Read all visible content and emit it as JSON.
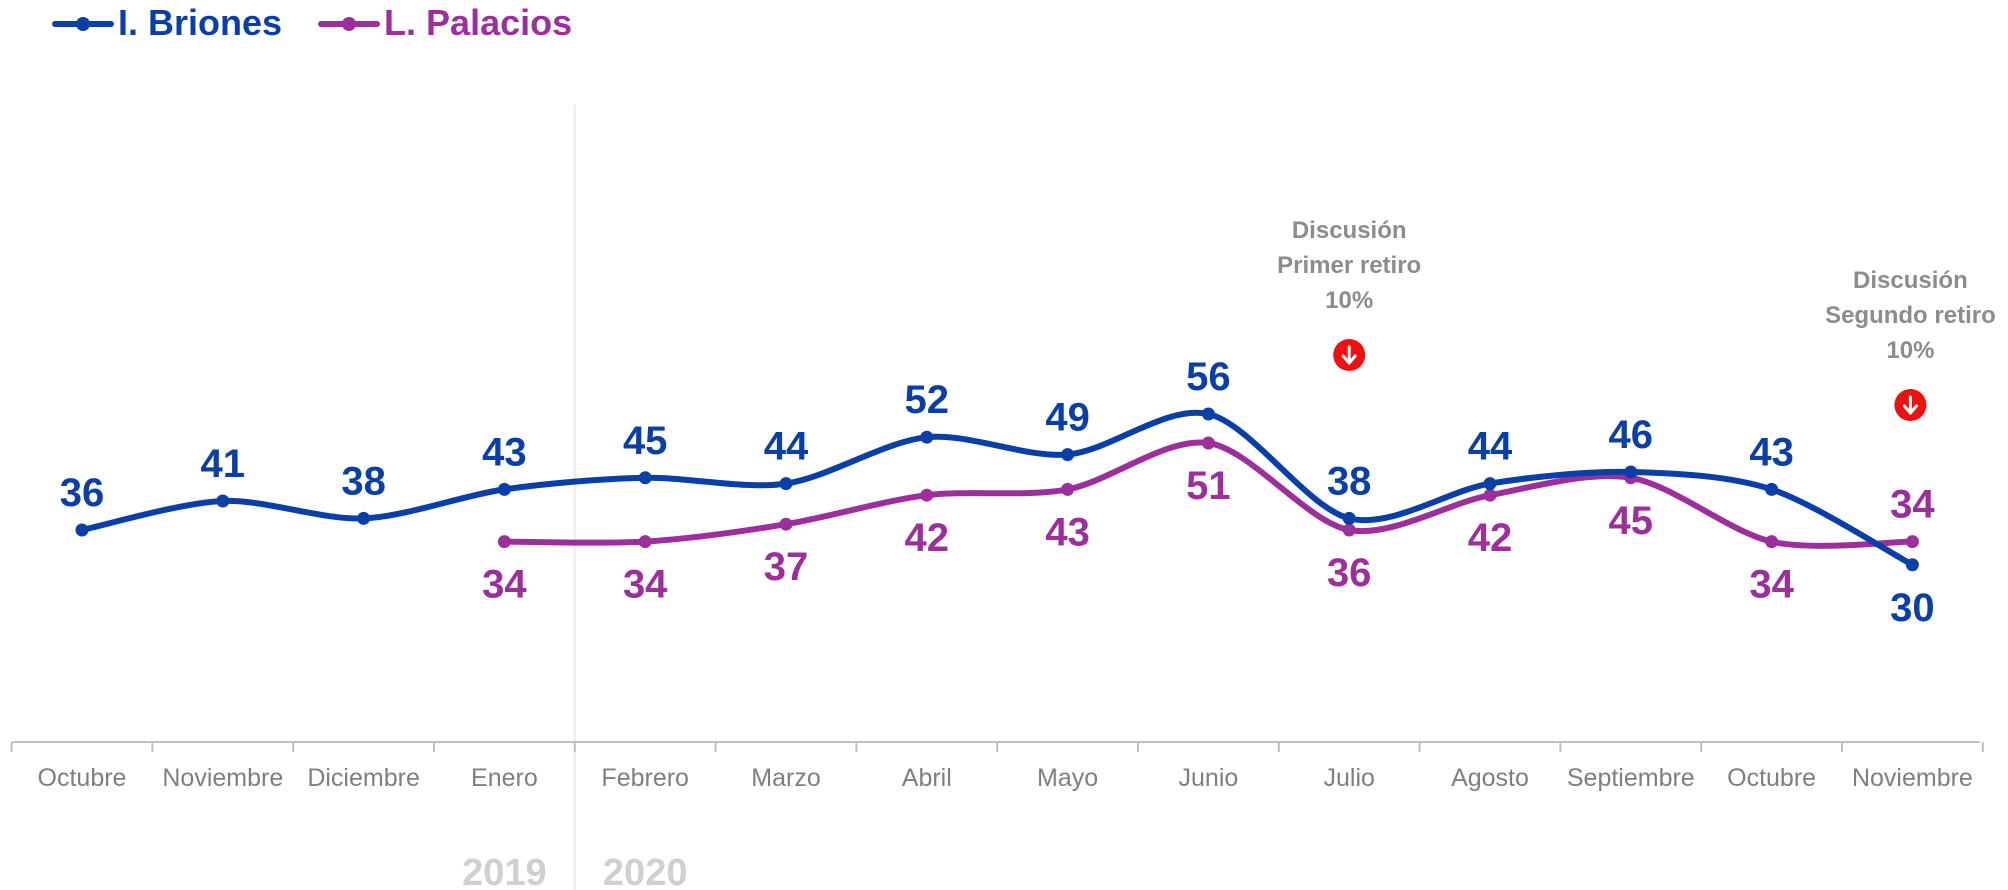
{
  "colors": {
    "briones": "#0a3fa8",
    "palacios": "#9c2f9c",
    "axis": "#bfbfbf",
    "annotation_icon": "#ee1111"
  },
  "chart_data": {
    "type": "line",
    "categories": [
      "Octubre",
      "Noviembre",
      "Diciembre",
      "Enero",
      "Febrero",
      "Marzo",
      "Abril",
      "Mayo",
      "Junio",
      "Julio",
      "Agosto",
      "Septiembre",
      "Octubre",
      "Noviembre"
    ],
    "year_labels": [
      {
        "text": "2019",
        "category_index": 3
      },
      {
        "text": "2020",
        "category_index": 4
      }
    ],
    "series": [
      {
        "name": "I. Briones",
        "values": [
          36,
          41,
          38,
          43,
          45,
          44,
          52,
          49,
          56,
          38,
          44,
          46,
          43,
          30
        ]
      },
      {
        "name": "L. Palacios",
        "values": [
          null,
          null,
          null,
          34,
          34,
          37,
          42,
          43,
          51,
          36,
          42,
          45,
          34,
          34
        ]
      }
    ],
    "annotations": [
      {
        "lines": [
          "Discusión",
          "Primer retiro",
          "10%"
        ],
        "icon": "down-arrow-icon",
        "category_index": 9
      },
      {
        "lines": [
          "Discusión",
          "Segundo retiro",
          "10%"
        ],
        "icon": "down-arrow-icon",
        "category_index": 13
      }
    ],
    "legend_position": "top-left",
    "grid": false
  }
}
